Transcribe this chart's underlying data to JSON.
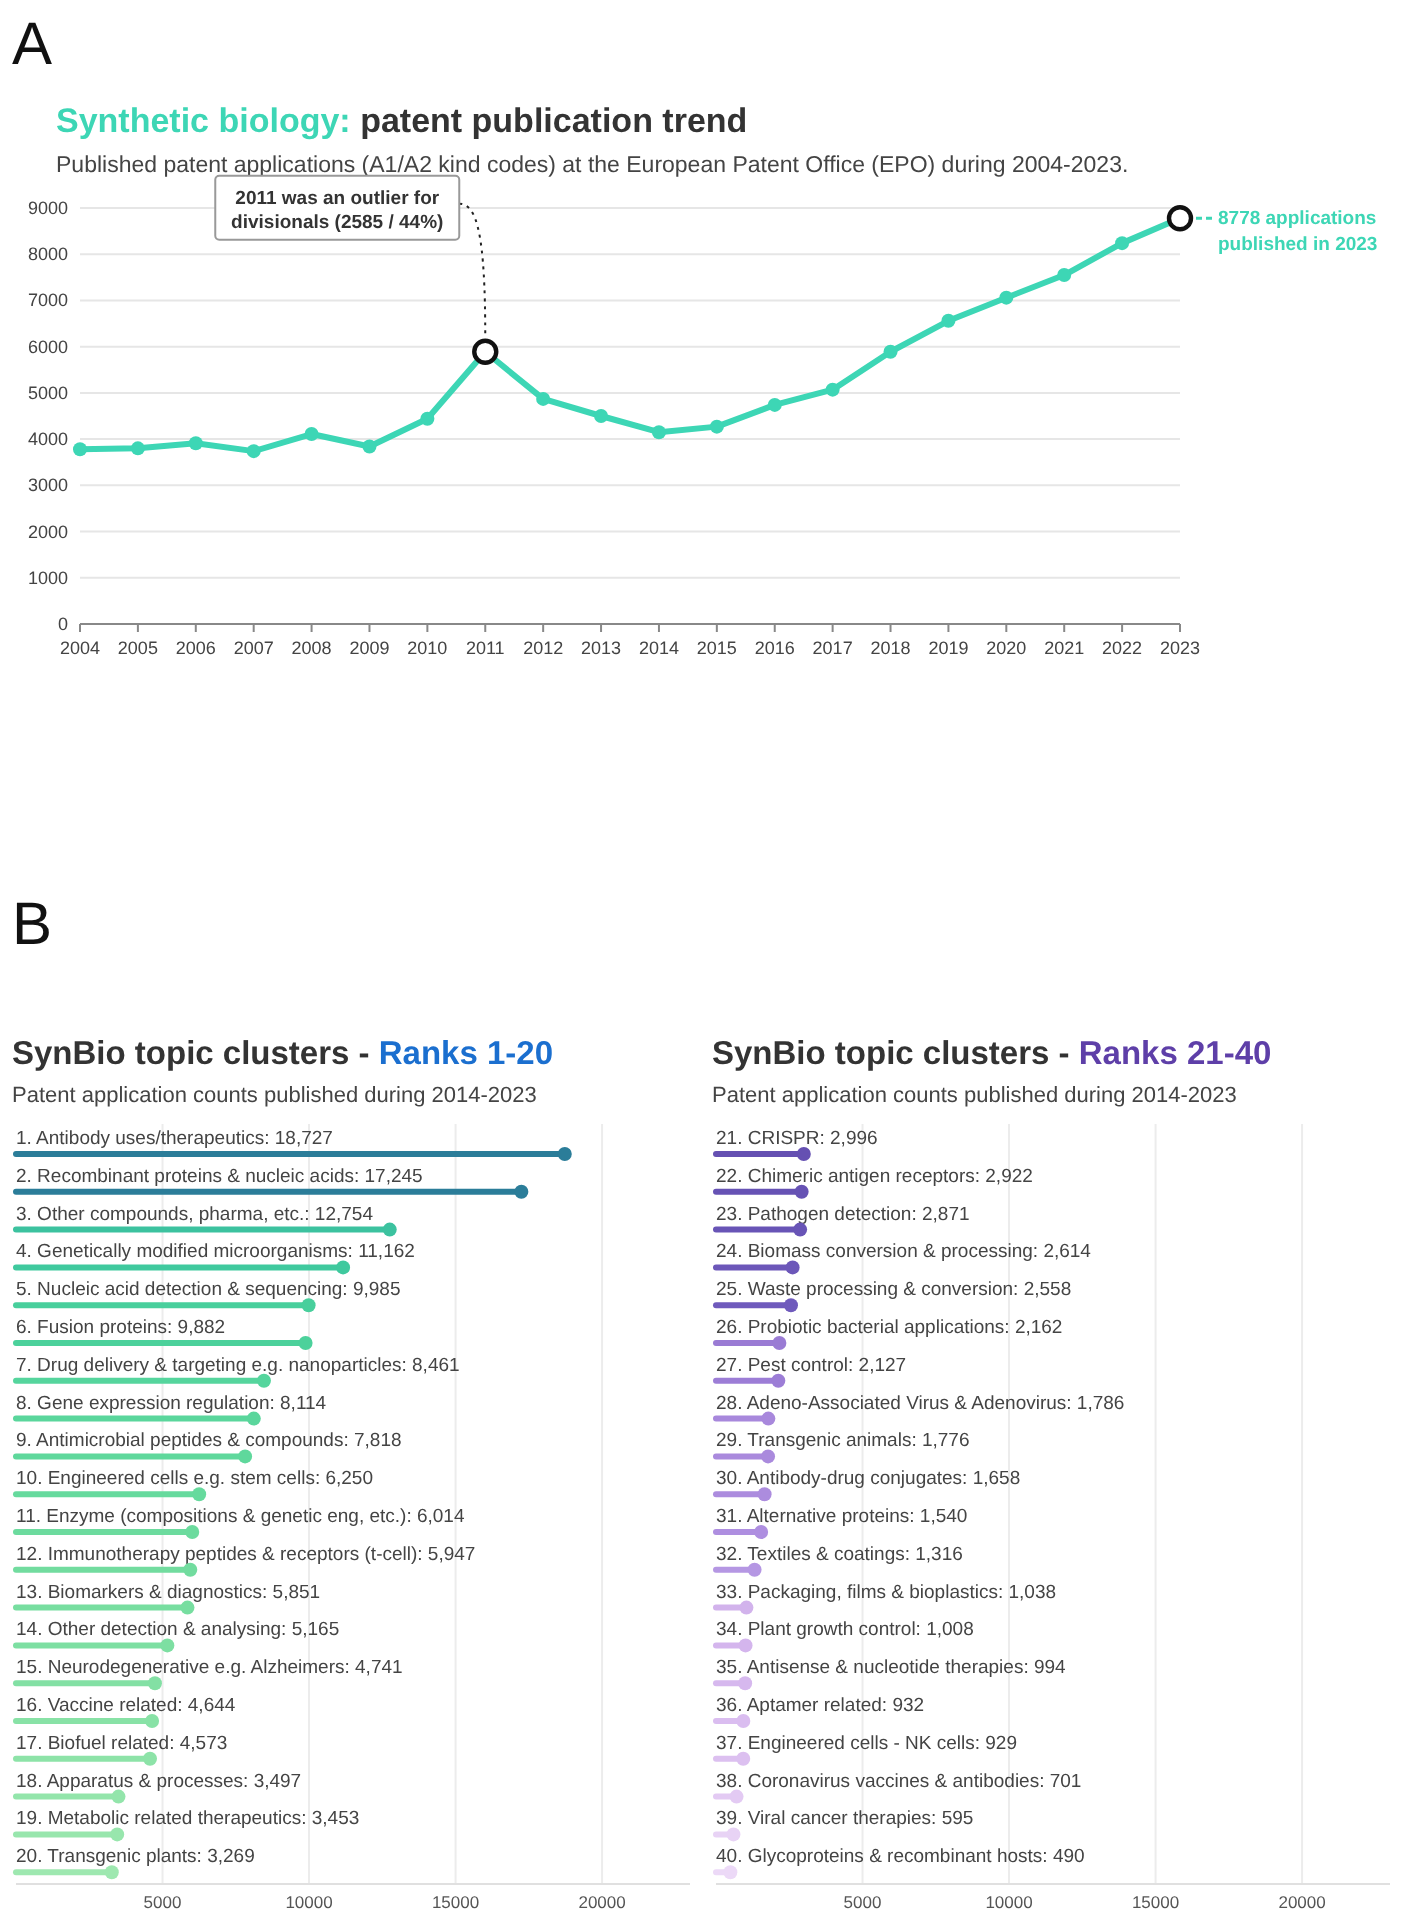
{
  "chart_data": [
    {
      "type": "line",
      "title": "Synthetic biology: patent publication trend",
      "subtitle": "Published patent applications (A1/A2 kind codes) at the European Patent Office (EPO) during 2004-2023.",
      "x": [
        2004,
        2005,
        2006,
        2007,
        2008,
        2009,
        2010,
        2011,
        2012,
        2013,
        2014,
        2015,
        2016,
        2017,
        2018,
        2019,
        2020,
        2021,
        2022,
        2023
      ],
      "series": [
        {
          "color": "#3dd6b5",
          "values": [
            3780,
            3800,
            3910,
            3740,
            4110,
            3840,
            4440,
            5890,
            4870,
            4500,
            4150,
            4270,
            4740,
            5070,
            5890,
            6560,
            7060,
            7550,
            8240,
            8778
          ]
        }
      ],
      "xlim": [
        2004,
        2023
      ],
      "xticks": [
        2004,
        2005,
        2006,
        2007,
        2008,
        2009,
        2010,
        2011,
        2012,
        2013,
        2014,
        2015,
        2016,
        2017,
        2018,
        2019,
        2020,
        2021,
        2022,
        2023
      ],
      "ylim": [
        0,
        9000
      ],
      "yticks": [
        0,
        1000,
        2000,
        3000,
        4000,
        5000,
        6000,
        7000,
        8000,
        9000
      ],
      "grid": "y",
      "marker": "circle",
      "line_style": "solid",
      "annotations": [
        "A",
        {
          "text": "2011 was an outlier for divisionals (2585 / 44%)",
          "x": 2011,
          "y": 5890
        },
        {
          "text": "8778 applications published in 2023",
          "x": 2023,
          "y": 8778
        }
      ]
    },
    {
      "type": "lollipop",
      "orientation": "horizontal",
      "title": "SynBio topic clusters - Ranks 1-20",
      "subtitle": "Patent application counts published during 2014-2023",
      "categories": [
        "1. Antibody uses/therapeutics: 18,727",
        "2. Recombinant proteins & nucleic acids: 17,245",
        "3. Other compounds, pharma, etc.: 12,754",
        "4. Genetically modified microorganisms: 11,162",
        "5. Nucleic acid detection & sequencing: 9,985",
        "6. Fusion proteins: 9,882",
        "7. Drug delivery & targeting e.g. nanoparticles: 8,461",
        "8. Gene expression regulation: 8,114",
        "9. Antimicrobial peptides & compounds: 7,818",
        "10. Engineered cells e.g. stem cells: 6,250",
        "11. Enzyme (compositions & genetic eng, etc.): 6,014",
        "12. Immunotherapy peptides & receptors (t-cell): 5,947",
        "13. Biomarkers & diagnostics: 5,851",
        "14. Other detection & analysing: 5,165",
        "15. Neurodegenerative e.g. Alzheimers: 4,741",
        "16. Vaccine related: 4,644",
        "17. Biofuel related: 4,573",
        "18. Apparatus & processes: 3,497",
        "19. Metabolic related therapeutics: 3,453",
        "20. Transgenic plants: 3,269"
      ],
      "values": [
        18727,
        17245,
        12754,
        11162,
        9985,
        9882,
        8461,
        8114,
        7818,
        6250,
        6014,
        5947,
        5851,
        5165,
        4741,
        4644,
        4573,
        3497,
        3453,
        3269
      ],
      "colors": [
        "#2b7d99",
        "#2b7d99",
        "#3cc29f",
        "#3fc99e",
        "#48cf9c",
        "#4cd19b",
        "#55d59d",
        "#5ad69c",
        "#5fd89c",
        "#66da9d",
        "#6cdb9e",
        "#72dc9f",
        "#77dea0",
        "#7ddfa2",
        "#83e0a4",
        "#88e2a6",
        "#8de3a8",
        "#93e5ab",
        "#98e6ad",
        "#9ee8b0"
      ],
      "xlim": [
        0,
        23000
      ],
      "xticks": [
        5000,
        10000,
        15000,
        20000
      ],
      "grid": "x",
      "annotations": [
        "B"
      ]
    },
    {
      "type": "lollipop",
      "orientation": "horizontal",
      "title": "SynBio topic clusters - Ranks 21-40",
      "subtitle": "Patent application counts published during 2014-2023",
      "categories": [
        "21. CRISPR: 2,996",
        "22. Chimeric antigen receptors: 2,922",
        "23. Pathogen detection: 2,871",
        "24. Biomass conversion & processing: 2,614",
        "25. Waste processing & conversion: 2,558",
        "26. Probiotic bacterial applications: 2,162",
        "27. Pest control: 2,127",
        "28. Adeno-Associated Virus & Adenovirus: 1,786",
        "29. Transgenic animals: 1,776",
        "30. Antibody-drug conjugates: 1,658",
        "31. Alternative proteins: 1,540",
        "32. Textiles & coatings: 1,316",
        "33. Packaging, films & bioplastics: 1,038",
        "34. Plant growth control: 1,008",
        "35. Antisense & nucleotide therapies: 994",
        "36. Aptamer related: 932",
        "37. Engineered cells - NK cells: 929",
        "38. Coronavirus vaccines & antibodies: 701",
        "39. Viral cancer therapies: 595",
        "40. Glycoproteins & recombinant hosts: 490"
      ],
      "values": [
        2996,
        2922,
        2871,
        2614,
        2558,
        2162,
        2127,
        1786,
        1776,
        1658,
        1540,
        1316,
        1038,
        1008,
        994,
        932,
        929,
        701,
        595,
        490
      ],
      "colors": [
        "#6550b2",
        "#6652b4",
        "#6854b6",
        "#6c57b9",
        "#6f5abc",
        "#9a7bd4",
        "#9c7dd6",
        "#a888dc",
        "#aa8add",
        "#ac8cde",
        "#ae8ee0",
        "#b597e3",
        "#d2b3ec",
        "#d4b5ed",
        "#d6b8ee",
        "#dabdf0",
        "#dcc0f0",
        "#e3caf3",
        "#e8d3f5",
        "#ecd9f7"
      ],
      "xlim": [
        0,
        23000
      ],
      "xticks": [
        5000,
        10000,
        15000,
        20000
      ],
      "grid": "x"
    }
  ]
}
